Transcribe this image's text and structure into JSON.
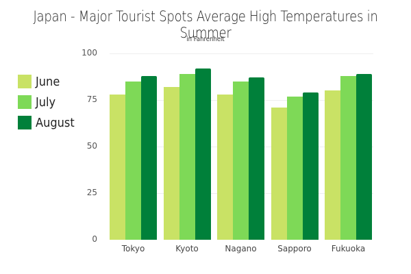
{
  "title": "Japan - Major Tourist Spots Average High Temperatures in Summer",
  "subtitle": "in Fahrenheit",
  "legend": [
    {
      "label": "June",
      "color": "#c9e265"
    },
    {
      "label": "July",
      "color": "#7ed957"
    },
    {
      "label": "August",
      "color": "#00803a"
    }
  ],
  "y_ticks": [
    "100",
    "75",
    "50",
    "25",
    "0"
  ],
  "chart_data": {
    "type": "bar",
    "title": "Japan - Major Tourist Spots Average High Temperatures in Summer",
    "subtitle": "in Fahrenheit",
    "xlabel": "",
    "ylabel": "",
    "categories": [
      "Tokyo",
      "Kyoto",
      "Nagano",
      "Sapporo",
      "Fukuoka"
    ],
    "series": [
      {
        "name": "June",
        "color": "#c9e265",
        "values": [
          78,
          82,
          78,
          71,
          80
        ]
      },
      {
        "name": "July",
        "color": "#7ed957",
        "values": [
          85,
          89,
          85,
          77,
          88
        ]
      },
      {
        "name": "August",
        "color": "#00803a",
        "values": [
          88,
          92,
          87,
          79,
          89
        ]
      }
    ],
    "ylim": [
      0,
      100
    ],
    "y_ticks": [
      0,
      25,
      50,
      75,
      100
    ],
    "grid": true,
    "legend_position": "left"
  }
}
